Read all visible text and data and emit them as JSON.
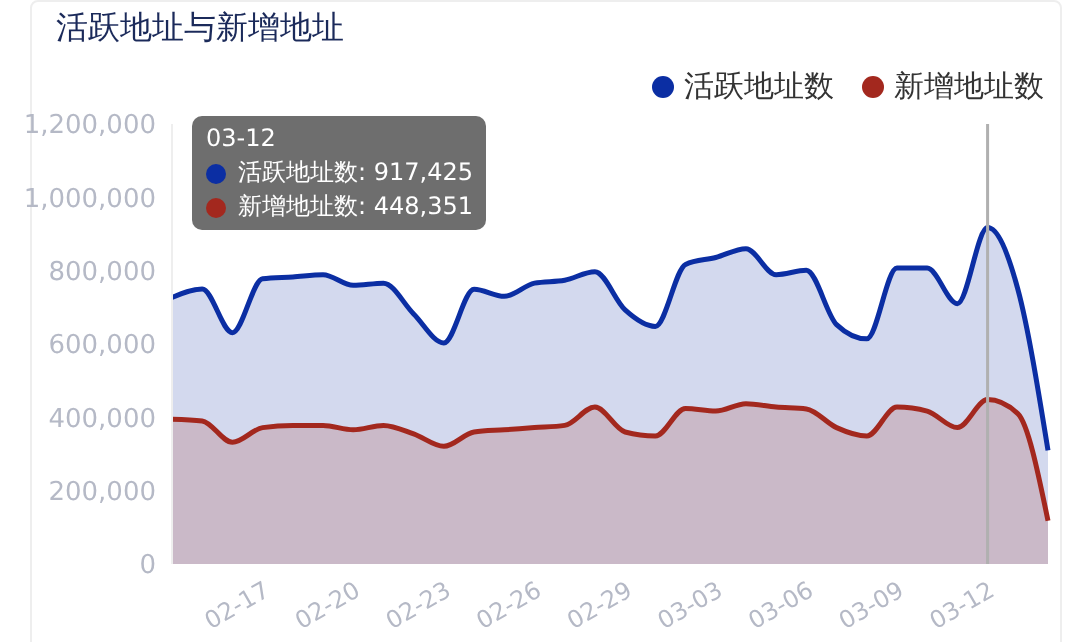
{
  "chart_data": {
    "type": "area",
    "title": "活跃地址与新增地址",
    "categories": [
      null,
      null,
      null,
      "02-17",
      null,
      null,
      "02-20",
      null,
      null,
      "02-23",
      null,
      null,
      "02-26",
      null,
      null,
      "02-29",
      null,
      null,
      "03-03",
      null,
      null,
      "03-06",
      null,
      null,
      "03-09",
      null,
      null,
      "03-12",
      null,
      null
    ],
    "series": [
      {
        "name": "活跃地址数",
        "color": "#0b2ea3",
        "values": [
          727000,
          750000,
          631000,
          778000,
          783000,
          789000,
          760000,
          766000,
          682000,
          603000,
          749000,
          730000,
          766000,
          774000,
          797000,
          693000,
          648000,
          817000,
          836000,
          860000,
          789000,
          801000,
          653000,
          614000,
          807000,
          807000,
          710000,
          917425,
          750000,
          310000
        ]
      },
      {
        "name": "新增地址数",
        "color": "#a3281e",
        "values": [
          395000,
          390000,
          332000,
          372000,
          378000,
          378000,
          366000,
          378000,
          355000,
          321000,
          360000,
          366000,
          372000,
          378000,
          428000,
          360000,
          349000,
          424000,
          417000,
          437000,
          428000,
          423000,
          372000,
          349000,
          428000,
          417000,
          372000,
          448351,
          410000,
          118000
        ]
      }
    ],
    "ylim": [
      0,
      1200000
    ],
    "yticks": [
      0,
      {
        "value": 200000,
        "label": "200,000"
      },
      {
        "value": 400000,
        "label": "400,000"
      },
      {
        "value": 600000,
        "label": "600,000"
      },
      {
        "value": 800000,
        "label": "800,000"
      },
      {
        "value": 1000000,
        "label": "1,000,000"
      },
      {
        "value": 1200000,
        "label": "1,200,000"
      }
    ],
    "grid": false,
    "legend": "top right",
    "marker": "none",
    "ref_lines": [
      {
        "axis": "x",
        "value": "03-12",
        "color": "#b0b0b0"
      }
    ],
    "annotations": [
      "03-12",
      "活跃地址数: 917,425",
      "新增地址数: 448,351"
    ]
  }
}
